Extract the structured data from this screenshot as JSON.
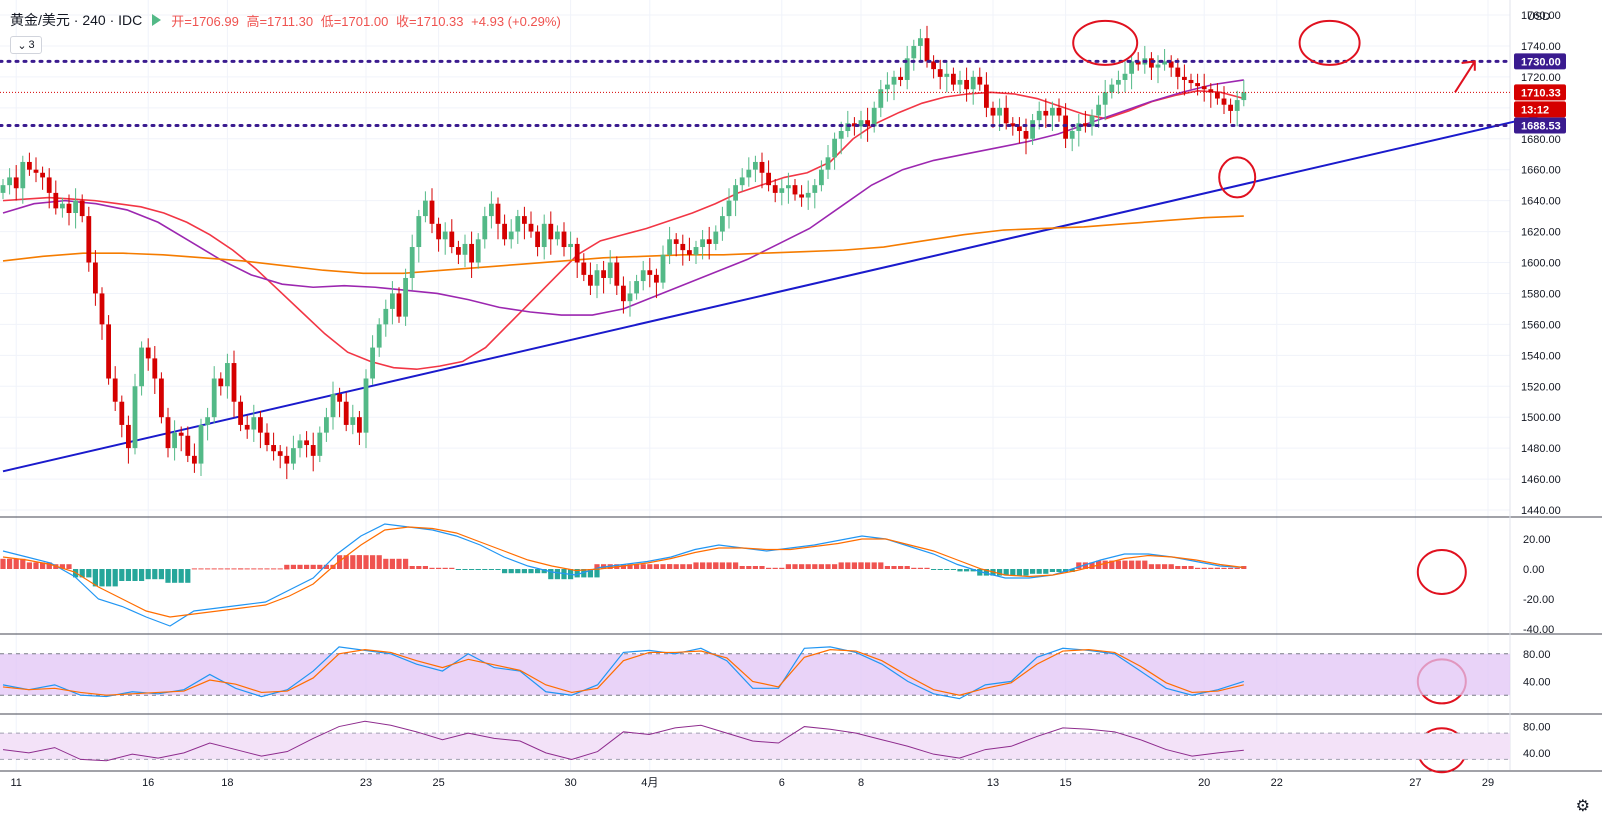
{
  "header": {
    "symbol": "黄金/美元 · 240 · IDC",
    "open_label": "开=1706.99",
    "high_label": "高=1711.30",
    "low_label": "低=1701.00",
    "close_label": "收=1710.33",
    "change_label": "+4.93 (+0.29%)",
    "indicator_chip": "3"
  },
  "currency": "USD",
  "price_tags": {
    "resistance": "1730.00",
    "last": "1710.33",
    "countdown": "13:12",
    "support": "1688.53"
  },
  "colors": {
    "up": "#53b987",
    "down": "#d50000",
    "ma_fast": "#f23645",
    "ma_mid": "#9c27b0",
    "ma_slow": "#f57c00",
    "trendline": "#1a1acc",
    "hline": "#3a1b8f",
    "annotation": "#e0111f",
    "macd": "#2196f3",
    "signal": "#ff6d00",
    "hist_pos": "#ef5350",
    "hist_neg": "#26a69a",
    "stoch_band": "#e1c4f6",
    "rsi": "#8e2c8e"
  },
  "chart_data": {
    "type": "candlestick",
    "price_ylim": [
      1440,
      1760
    ],
    "price_ticks": [
      "1440.00",
      "1460.00",
      "1480.00",
      "1500.00",
      "1520.00",
      "1540.00",
      "1560.00",
      "1580.00",
      "1600.00",
      "1620.00",
      "1640.00",
      "1660.00",
      "1680.00",
      "1700.00",
      "1720.00",
      "1740.00",
      "1760.00"
    ],
    "x_ticks": [
      "11",
      "16",
      "18",
      "23",
      "25",
      "30",
      "4月",
      "6",
      "8",
      "13",
      "15",
      "20",
      "22",
      "27",
      "29"
    ],
    "x_tick_bars": [
      2,
      22,
      34,
      55,
      66,
      86,
      98,
      118,
      130,
      150,
      161,
      182,
      193,
      214,
      225
    ],
    "horizontal_lines": [
      1730.0,
      1688.53
    ],
    "trendline": {
      "from": [
        0,
        1465
      ],
      "to": [
        236,
        1698
      ]
    },
    "close": [
      1650,
      1655,
      1648,
      1665,
      1660,
      1658,
      1655,
      1645,
      1635,
      1638,
      1632,
      1640,
      1630,
      1600,
      1580,
      1560,
      1525,
      1510,
      1495,
      1480,
      1520,
      1545,
      1538,
      1525,
      1500,
      1480,
      1490,
      1488,
      1475,
      1470,
      1495,
      1500,
      1525,
      1520,
      1535,
      1510,
      1495,
      1492,
      1500,
      1490,
      1482,
      1478,
      1475,
      1470,
      1480,
      1485,
      1482,
      1475,
      1490,
      1500,
      1515,
      1510,
      1495,
      1500,
      1490,
      1525,
      1545,
      1560,
      1570,
      1580,
      1565,
      1590,
      1610,
      1630,
      1640,
      1625,
      1615,
      1620,
      1610,
      1605,
      1612,
      1600,
      1615,
      1630,
      1638,
      1625,
      1615,
      1620,
      1630,
      1625,
      1620,
      1610,
      1625,
      1615,
      1620,
      1610,
      1612,
      1600,
      1592,
      1585,
      1595,
      1590,
      1600,
      1585,
      1575,
      1580,
      1588,
      1595,
      1592,
      1587,
      1605,
      1615,
      1612,
      1608,
      1605,
      1610,
      1615,
      1612,
      1620,
      1630,
      1640,
      1650,
      1655,
      1660,
      1665,
      1658,
      1650,
      1645,
      1648,
      1650,
      1644,
      1642,
      1645,
      1650,
      1660,
      1668,
      1680,
      1685,
      1690,
      1688,
      1692,
      1688,
      1700,
      1712,
      1715,
      1720,
      1718,
      1732,
      1740,
      1745,
      1730,
      1725,
      1720,
      1722,
      1715,
      1718,
      1712,
      1720,
      1715,
      1700,
      1695,
      1700,
      1690,
      1688,
      1685,
      1680,
      1692,
      1698,
      1695,
      1700,
      1695,
      1680,
      1685,
      1690,
      1688,
      1695,
      1702,
      1710,
      1715,
      1718,
      1722,
      1730,
      1728,
      1732,
      1726,
      1728,
      1730,
      1726,
      1720,
      1718,
      1716,
      1714,
      1712,
      1710,
      1706,
      1702,
      1698,
      1705,
      1710
    ],
    "ma_fast": [
      1640,
      1641,
      1642,
      1641,
      1640,
      1638,
      1636,
      1632,
      1626,
      1618,
      1608,
      1596,
      1582,
      1568,
      1554,
      1542,
      1536,
      1532,
      1531,
      1533,
      1536,
      1545,
      1560,
      1575,
      1590,
      1605,
      1614,
      1618,
      1622,
      1627,
      1632,
      1638,
      1645,
      1650,
      1655,
      1658,
      1665,
      1680,
      1690,
      1697,
      1703,
      1707,
      1709,
      1710,
      1709,
      1706,
      1701,
      1696,
      1693,
      1698,
      1704,
      1708,
      1711,
      1710,
      1706
    ],
    "ma_mid": [
      1632,
      1638,
      1640,
      1638,
      1634,
      1626,
      1614,
      1602,
      1592,
      1586,
      1584,
      1585,
      1584,
      1582,
      1580,
      1576,
      1571,
      1568,
      1566,
      1566,
      1570,
      1578,
      1586,
      1594,
      1602,
      1612,
      1622,
      1636,
      1650,
      1660,
      1666,
      1670,
      1674,
      1678,
      1683,
      1690,
      1697,
      1704,
      1710,
      1715,
      1718
    ],
    "ma_slow": [
      1601,
      1604,
      1606,
      1606,
      1605,
      1603,
      1601,
      1598,
      1595,
      1593,
      1593,
      1595,
      1597,
      1599,
      1601,
      1603,
      1604,
      1605,
      1605,
      1606,
      1607,
      1608,
      1610,
      1614,
      1618,
      1621,
      1622,
      1623,
      1625,
      1627,
      1629,
      1630
    ],
    "macd_ylim": [
      -40,
      30
    ],
    "macd_ticks": [
      "20.00",
      "0.00",
      "-20.00",
      "-40.00"
    ],
    "macd_line": [
      12,
      8,
      4,
      -5,
      -20,
      -25,
      -32,
      -38,
      -28,
      -26,
      -24,
      -22,
      -14,
      -6,
      10,
      22,
      30,
      28,
      26,
      22,
      16,
      8,
      2,
      -2,
      -4,
      1,
      3,
      5,
      8,
      13,
      16,
      14,
      12,
      14,
      16,
      19,
      22,
      20,
      15,
      10,
      3,
      -2,
      -6,
      -6,
      -4,
      1,
      6,
      10,
      10,
      8,
      5,
      2,
      1
    ],
    "signal_line": [
      8,
      6,
      3,
      -2,
      -12,
      -20,
      -28,
      -32,
      -30,
      -28,
      -26,
      -24,
      -18,
      -10,
      4,
      16,
      26,
      28,
      27,
      24,
      18,
      12,
      6,
      2,
      -1,
      0,
      2,
      4,
      7,
      11,
      14,
      14,
      13,
      13,
      15,
      17,
      20,
      20,
      16,
      12,
      6,
      0,
      -4,
      -5,
      -4,
      -1,
      3,
      7,
      9,
      8,
      6,
      3,
      1
    ],
    "stoch_ylim": [
      0,
      100
    ],
    "stoch_ticks": [
      "80.00",
      "40.00"
    ],
    "stoch_band": [
      20,
      80
    ],
    "stoch_k": [
      35,
      28,
      35,
      20,
      18,
      25,
      22,
      28,
      50,
      30,
      18,
      28,
      55,
      90,
      85,
      80,
      65,
      55,
      80,
      60,
      55,
      25,
      20,
      35,
      82,
      85,
      80,
      88,
      70,
      30,
      30,
      88,
      90,
      82,
      65,
      40,
      22,
      15,
      35,
      40,
      75,
      88,
      85,
      80,
      55,
      30,
      20,
      28,
      40
    ],
    "stoch_d": [
      32,
      28,
      30,
      24,
      20,
      22,
      24,
      26,
      42,
      36,
      24,
      26,
      45,
      80,
      86,
      82,
      70,
      60,
      72,
      64,
      56,
      35,
      24,
      30,
      70,
      82,
      82,
      84,
      74,
      40,
      32,
      75,
      86,
      84,
      70,
      48,
      28,
      20,
      30,
      38,
      65,
      84,
      86,
      82,
      62,
      38,
      24,
      26,
      35
    ],
    "rsi_ylim": [
      20,
      90
    ],
    "rsi_ticks": [
      "80.00",
      "40.00"
    ],
    "rsi_band": [
      30,
      70
    ],
    "rsi": [
      45,
      40,
      48,
      30,
      28,
      38,
      32,
      40,
      55,
      45,
      35,
      42,
      62,
      80,
      88,
      82,
      72,
      60,
      70,
      62,
      58,
      40,
      30,
      42,
      72,
      68,
      78,
      82,
      70,
      58,
      55,
      80,
      76,
      70,
      60,
      50,
      38,
      32,
      45,
      50,
      65,
      78,
      76,
      72,
      60,
      45,
      35,
      40,
      44
    ]
  }
}
